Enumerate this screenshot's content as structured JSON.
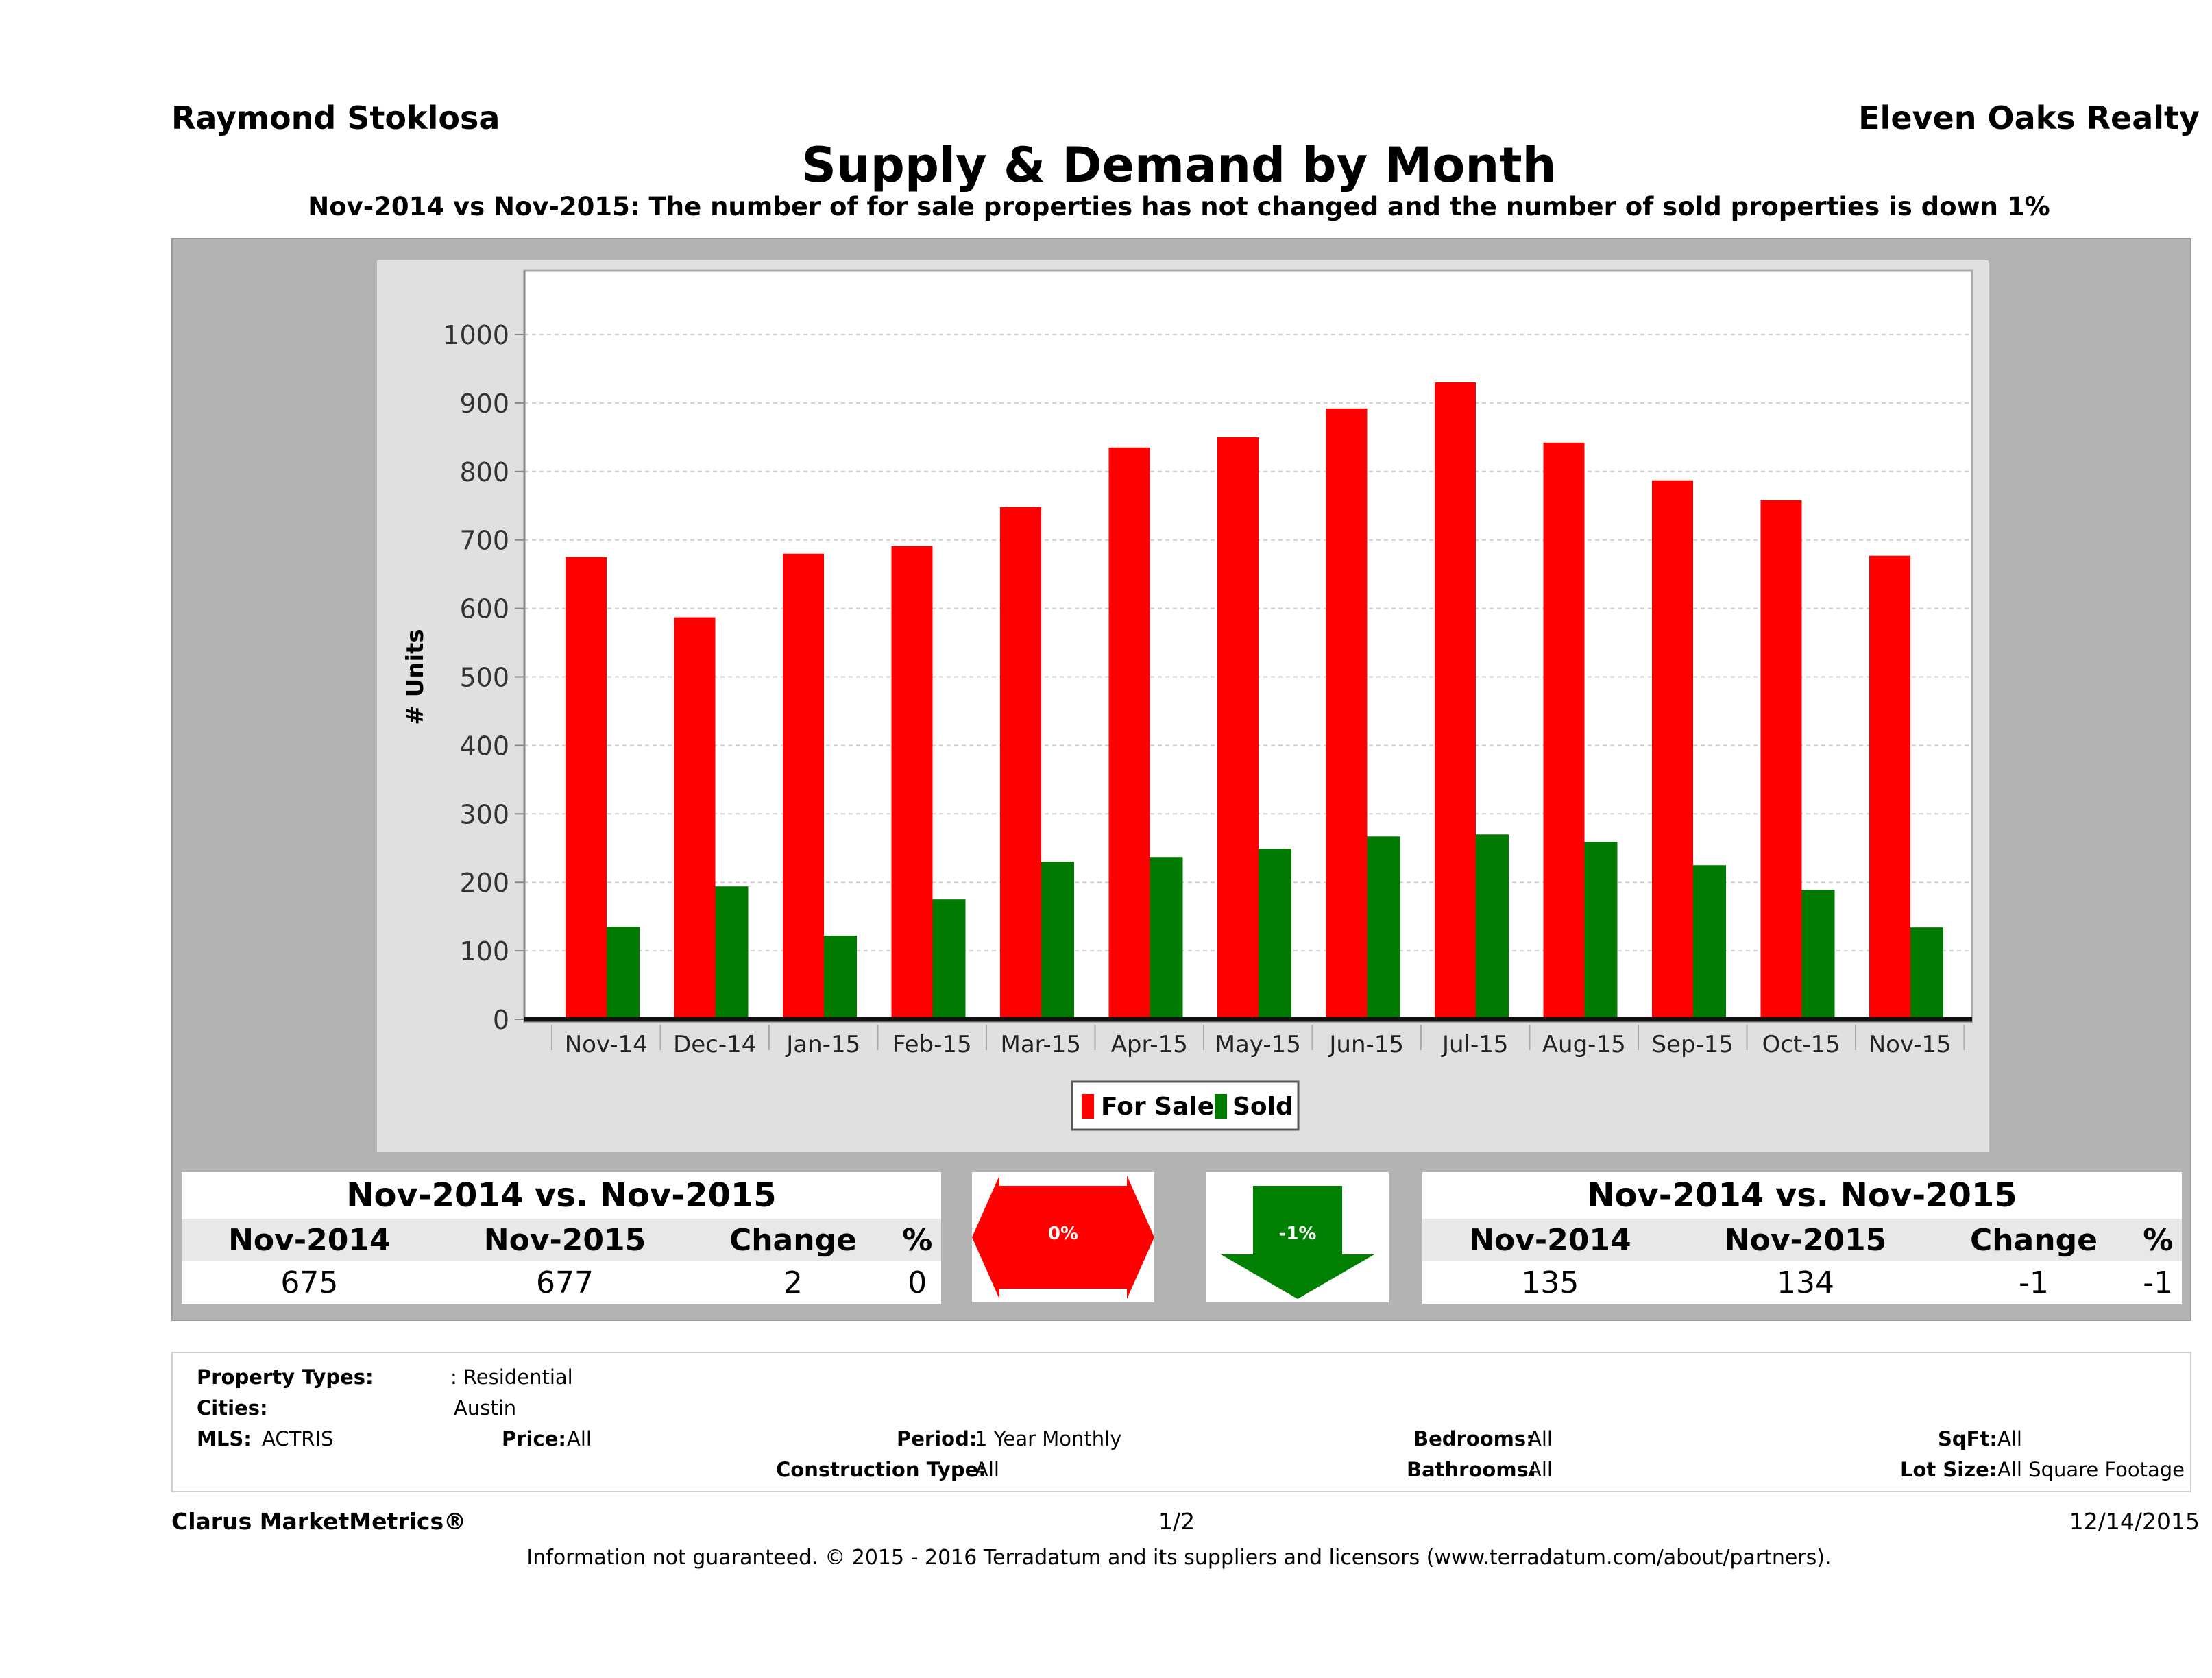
{
  "header": {
    "agent": "Raymond Stoklosa",
    "brokerage": "Eleven Oaks Realty",
    "title": "Supply & Demand by Month",
    "subtitle": "Nov-2014 vs Nov-2015: The number of for sale properties has not changed and the number of sold properties is down 1%"
  },
  "chart_data": {
    "type": "bar",
    "categories": [
      "Nov-14",
      "Dec-14",
      "Jan-15",
      "Feb-15",
      "Mar-15",
      "Apr-15",
      "May-15",
      "Jun-15",
      "Jul-15",
      "Aug-15",
      "Sep-15",
      "Oct-15",
      "Nov-15"
    ],
    "series": [
      {
        "name": "For Sale",
        "color": "#ff0000",
        "values": [
          675,
          587,
          680,
          691,
          748,
          835,
          850,
          892,
          930,
          842,
          787,
          758,
          677
        ]
      },
      {
        "name": "Sold",
        "color": "#007a00",
        "values": [
          135,
          194,
          122,
          175,
          230,
          237,
          249,
          267,
          270,
          259,
          225,
          189,
          134
        ]
      }
    ],
    "ylabel": "# Units",
    "ylim": [
      0,
      1000
    ],
    "yticks": [
      "0",
      "100",
      "200",
      "300",
      "400",
      "500",
      "600",
      "700",
      "800",
      "900",
      "1000"
    ],
    "legend_position": "bottom-center",
    "grid": true
  },
  "stats_left": {
    "caption": "Nov-2014 vs. Nov-2015",
    "headers": [
      "Nov-2014",
      "Nov-2015",
      "Change",
      "%"
    ],
    "values": [
      "675",
      "677",
      "2",
      "0"
    ]
  },
  "indicator_left": {
    "label": "0%",
    "color": "#ff0000",
    "icon": "double-arrow-icon"
  },
  "indicator_right": {
    "label": "-1%",
    "color": "#008000",
    "icon": "down-arrow-icon"
  },
  "stats_right": {
    "caption": "Nov-2014 vs. Nov-2015",
    "headers": [
      "Nov-2014",
      "Nov-2015",
      "Change",
      "%"
    ],
    "values": [
      "135",
      "134",
      "-1",
      "-1"
    ]
  },
  "filters": {
    "property_types_label": "Property Types:",
    "property_types_value": ": Residential",
    "cities_label": "Cities:",
    "cities_value": "Austin",
    "mls_label": "MLS:",
    "mls_value": "ACTRIS",
    "price_label": "Price:",
    "price_value": "All",
    "period_label": "Period:",
    "period_value": "1 Year Monthly",
    "construction_label": "Construction Type:",
    "construction_value": "All",
    "bedrooms_label": "Bedrooms:",
    "bedrooms_value": "All",
    "bathrooms_label": "Bathrooms:",
    "bathrooms_value": "All",
    "sqft_label": "SqFt:",
    "sqft_value": "All",
    "lotsize_label": "Lot Size:",
    "lotsize_value": "All Square Footage"
  },
  "footer": {
    "brand": "Clarus MarketMetrics®",
    "page": "1/2",
    "date": "12/14/2015",
    "disclaimer": "Information not guaranteed. © 2015 - 2016 Terradatum and its suppliers and licensors (www.terradatum.com/about/partners)."
  }
}
